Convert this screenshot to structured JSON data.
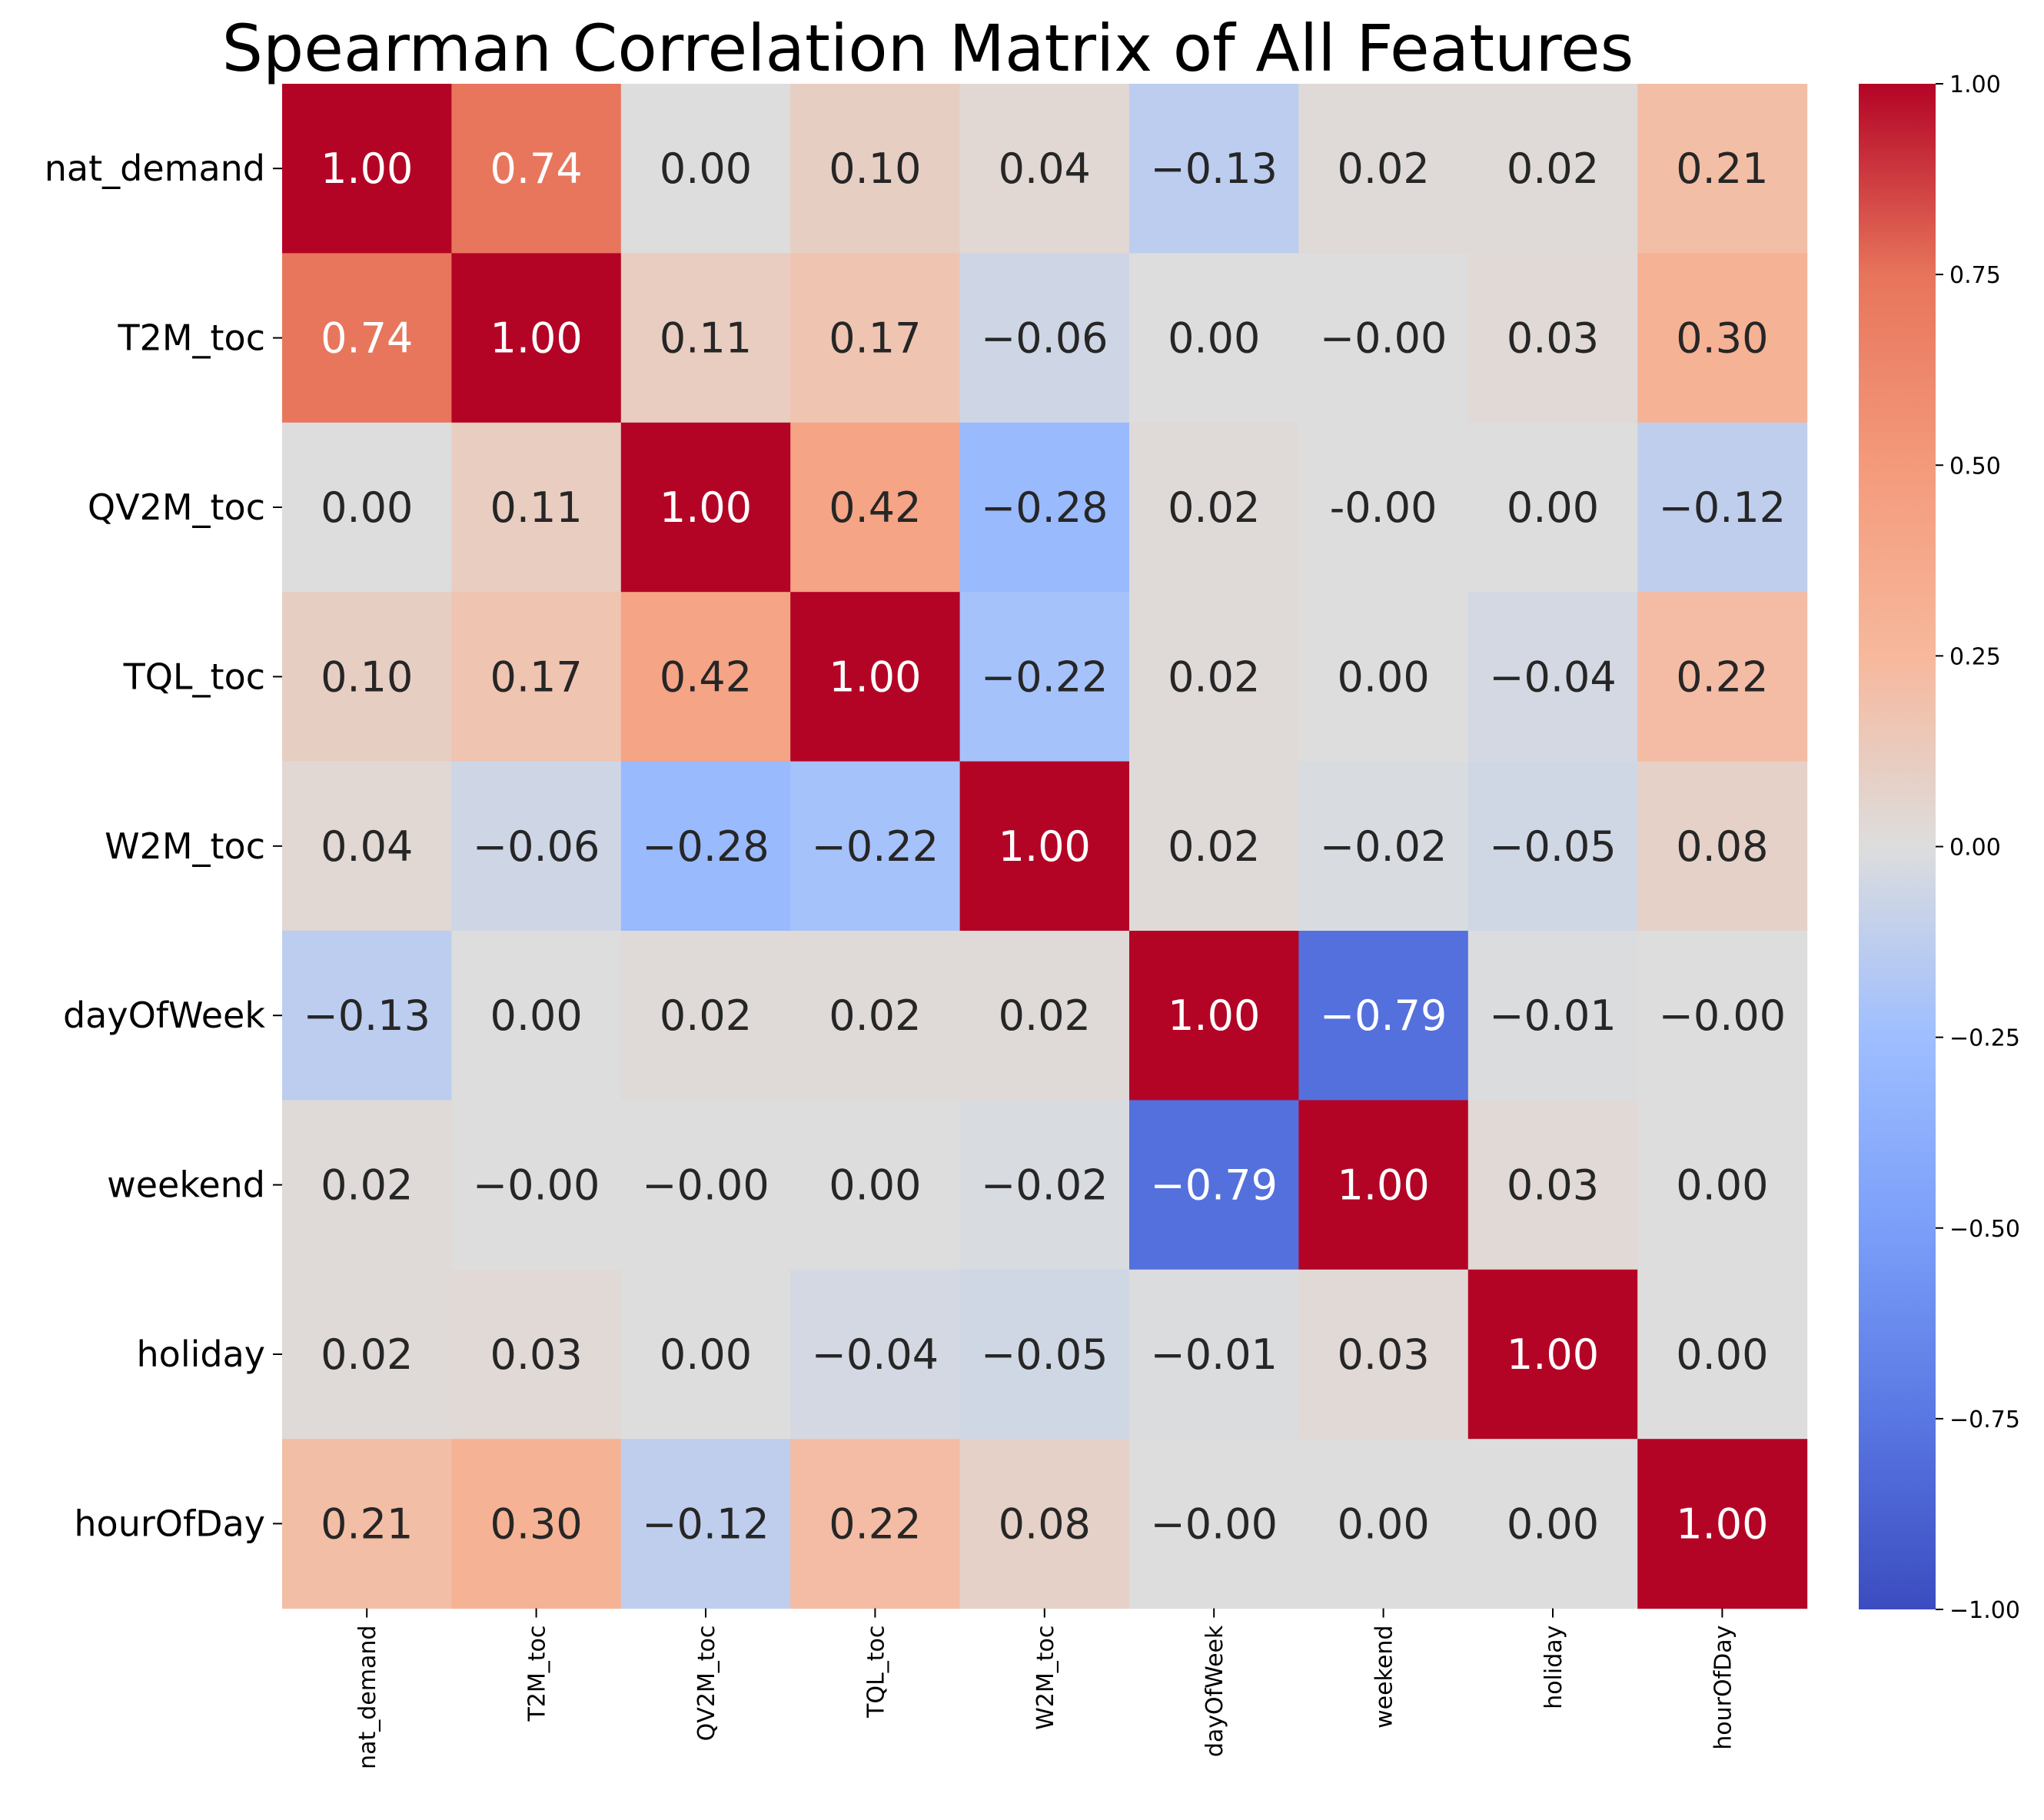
{
  "chart_data": {
    "type": "heatmap",
    "title": "Spearman Correlation Matrix of All Features",
    "rows": [
      "nat_demand",
      "T2M_toc",
      "QV2M_toc",
      "TQL_toc",
      "W2M_toc",
      "dayOfWeek",
      "weekend",
      "holiday",
      "hourOfDay"
    ],
    "columns": [
      "nat_demand",
      "T2M_toc",
      "QV2M_toc",
      "TQL_toc",
      "W2M_toc",
      "dayOfWeek",
      "weekend",
      "holiday",
      "hourOfDay"
    ],
    "values": [
      [
        1.0,
        0.74,
        0.0,
        0.1,
        0.04,
        -0.13,
        0.02,
        0.02,
        0.21
      ],
      [
        0.74,
        1.0,
        0.11,
        0.17,
        -0.06,
        0.0,
        -0.0,
        0.03,
        0.3
      ],
      [
        0.0,
        0.11,
        1.0,
        0.42,
        -0.28,
        0.02,
        -0.0,
        0.0,
        -0.12
      ],
      [
        0.1,
        0.17,
        0.42,
        1.0,
        -0.22,
        0.02,
        0.0,
        -0.04,
        0.22
      ],
      [
        0.04,
        -0.06,
        -0.28,
        -0.22,
        1.0,
        0.02,
        -0.02,
        -0.05,
        0.08
      ],
      [
        -0.13,
        0.0,
        0.02,
        0.02,
        0.02,
        1.0,
        -0.79,
        -0.01,
        -0.0
      ],
      [
        0.02,
        -0.0,
        -0.0,
        0.0,
        -0.02,
        -0.79,
        1.0,
        0.03,
        0.0
      ],
      [
        0.02,
        0.03,
        0.0,
        -0.04,
        -0.05,
        -0.01,
        0.03,
        1.0,
        0.0
      ],
      [
        0.21,
        0.3,
        -0.12,
        0.22,
        0.08,
        -0.0,
        0.0,
        0.0,
        1.0
      ]
    ],
    "labels": [
      [
        "1.00",
        "0.74",
        "0.00",
        "0.10",
        "0.04",
        "−0.13",
        "0.02",
        "0.02",
        "0.21"
      ],
      [
        "0.74",
        "1.00",
        "0.11",
        "0.17",
        "−0.06",
        "0.00",
        "−0.00",
        "0.03",
        "0.30"
      ],
      [
        "0.00",
        "0.11",
        "1.00",
        "0.42",
        "−0.28",
        "0.02",
        "-0.00",
        "0.00",
        "−0.12"
      ],
      [
        "0.10",
        "0.17",
        "0.42",
        "1.00",
        "−0.22",
        "0.02",
        "0.00",
        "−0.04",
        "0.22"
      ],
      [
        "0.04",
        "−0.06",
        "−0.28",
        "−0.22",
        "1.00",
        "0.02",
        "−0.02",
        "−0.05",
        "0.08"
      ],
      [
        "−0.13",
        "0.00",
        "0.02",
        "0.02",
        "0.02",
        "1.00",
        "−0.79",
        "−0.01",
        "−0.00"
      ],
      [
        "0.02",
        "−0.00",
        "−0.00",
        "0.00",
        "−0.02",
        "−0.79",
        "1.00",
        "0.03",
        "0.00"
      ],
      [
        "0.02",
        "0.03",
        "0.00",
        "−0.04",
        "−0.05",
        "−0.01",
        "0.03",
        "1.00",
        "0.00"
      ],
      [
        "0.21",
        "0.30",
        "−0.12",
        "0.22",
        "0.08",
        "−0.00",
        "0.00",
        "0.00",
        "1.00"
      ]
    ],
    "colormap": "coolwarm",
    "vmin": -1.0,
    "vmax": 1.0,
    "colorbar_ticks": [
      1.0,
      0.75,
      0.5,
      0.25,
      0.0,
      -0.25,
      -0.5,
      -0.75,
      -1.0
    ],
    "colorbar_tick_labels": [
      "1.00",
      "0.75",
      "0.50",
      "0.25",
      "0.00",
      "−0.25",
      "−0.50",
      "−0.75",
      "−1.00"
    ],
    "colorbar_location": "right"
  },
  "colors": {
    "cmap_stops": [
      [
        -1.0,
        "#3b4cc0"
      ],
      [
        -0.75,
        "#5977e3"
      ],
      [
        -0.5,
        "#7b9ff9"
      ],
      [
        -0.25,
        "#9ebeff"
      ],
      [
        0.0,
        "#dddddd"
      ],
      [
        0.25,
        "#f7b89c"
      ],
      [
        0.5,
        "#f49a7b"
      ],
      [
        0.75,
        "#e7745b"
      ],
      [
        1.0,
        "#b40426"
      ]
    ],
    "text_dark": "#262626",
    "text_light": "#ffffff"
  }
}
